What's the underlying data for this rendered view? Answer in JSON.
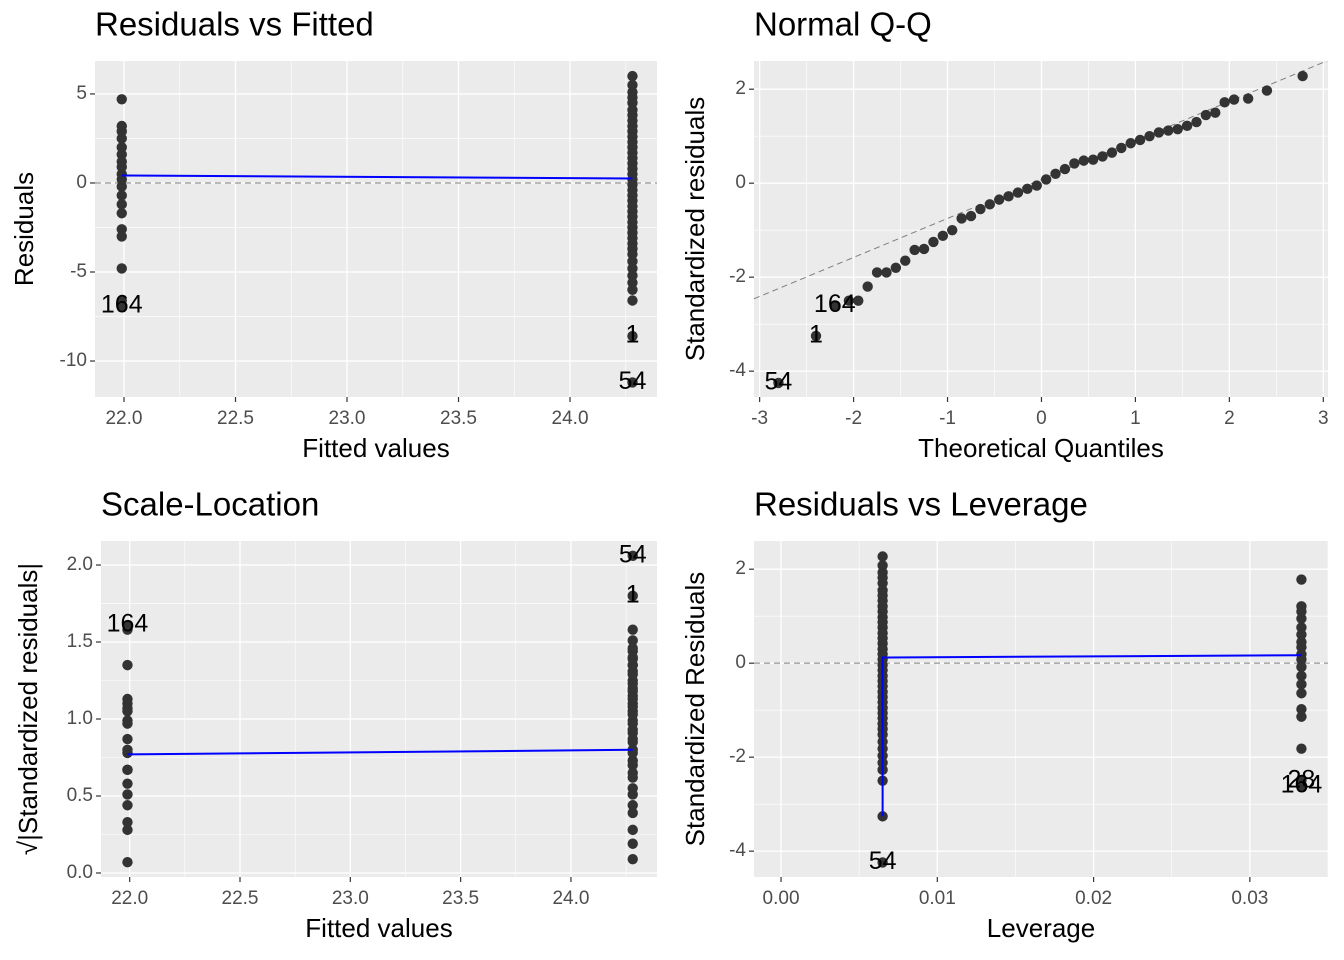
{
  "chart_data": [
    {
      "type": "scatter",
      "title": "Residuals vs Fitted",
      "x_label": "Fitted values",
      "y_label": "Residuals",
      "xlim": [
        21.87,
        24.39
      ],
      "ylim": [
        -12.02,
        6.85
      ],
      "xticks": [
        {
          "value": 22,
          "label": "22.0"
        },
        {
          "value": 22.5,
          "label": "22.5"
        },
        {
          "value": 23,
          "label": "23.0"
        },
        {
          "value": 23.5,
          "label": "23.5"
        },
        {
          "value": 24,
          "label": "24.0"
        }
      ],
      "yticks": [
        -10,
        -5,
        0,
        5
      ],
      "grid": true,
      "color": "#333333",
      "x": [
        21.99,
        21.99,
        21.99,
        21.99,
        21.99,
        21.99,
        21.99,
        21.99,
        21.99,
        21.99,
        21.99,
        21.99,
        21.99,
        21.99,
        21.99,
        21.99,
        21.99,
        21.99,
        21.99,
        24.28,
        24.28,
        24.28,
        24.28,
        24.28,
        24.28,
        24.28,
        24.28,
        24.28,
        24.28,
        24.28,
        24.28,
        24.28,
        24.28,
        24.28,
        24.28,
        24.28,
        24.28,
        24.28,
        24.28,
        24.28,
        24.28,
        24.28,
        24.28,
        24.28,
        24.28,
        24.28,
        24.28,
        24.28,
        24.28,
        24.28,
        24.28,
        24.28,
        24.28,
        24.28,
        24.28,
        24.28,
        24.28,
        24.28,
        24.28,
        24.28
      ],
      "values": [
        4.7,
        3.2,
        2.9,
        2.5,
        2.0,
        1.6,
        1.2,
        0.9,
        0.5,
        0.2,
        -0.2,
        -0.7,
        -1.2,
        -1.7,
        -2.6,
        -3.0,
        -4.8,
        -6.6,
        -6.9,
        6.0,
        5.5,
        5.1,
        4.8,
        4.5,
        4.1,
        3.8,
        3.5,
        3.2,
        2.9,
        2.6,
        2.3,
        2.0,
        1.7,
        1.4,
        1.1,
        0.8,
        0.5,
        0.2,
        -0.1,
        -0.4,
        -0.7,
        -1.0,
        -1.3,
        -1.6,
        -1.9,
        -2.2,
        -2.5,
        -2.8,
        -3.1,
        -3.4,
        -3.7,
        -4.0,
        -4.4,
        -4.8,
        -5.2,
        -5.6,
        -6.0,
        -6.6,
        -8.6,
        -11.2
      ],
      "smooth": {
        "x": [
          21.99,
          24.28
        ],
        "values": [
          0.42,
          0.25
        ],
        "color": "#0000ff"
      },
      "reference_line": {
        "y": 0
      },
      "point_labels": [
        {
          "text": "164",
          "x": 21.99,
          "y": -6.9
        },
        {
          "text": "1",
          "x": 24.28,
          "y": -8.6
        },
        {
          "text": "54",
          "x": 24.28,
          "y": -11.2
        }
      ]
    },
    {
      "type": "scatter",
      "title": "Normal Q-Q",
      "x_label": "Theoretical Quantiles",
      "y_label": "Standardized residuals",
      "xlim": [
        -3.06,
        3.05
      ],
      "ylim": [
        -4.55,
        2.6
      ],
      "xticks": [
        -3,
        -2,
        -1,
        0,
        1,
        2,
        3
      ],
      "yticks": [
        -4,
        -2,
        0,
        2
      ],
      "grid": true,
      "color": "#333333",
      "x": [
        -2.8,
        -2.4,
        -2.2,
        -2.05,
        -1.95,
        -1.85,
        -1.75,
        -1.65,
        -1.55,
        -1.45,
        -1.35,
        -1.25,
        -1.15,
        -1.05,
        -0.95,
        -0.85,
        -0.75,
        -0.65,
        -0.55,
        -0.45,
        -0.35,
        -0.25,
        -0.15,
        -0.05,
        0.05,
        0.15,
        0.25,
        0.35,
        0.45,
        0.55,
        0.65,
        0.75,
        0.85,
        0.95,
        1.05,
        1.15,
        1.25,
        1.35,
        1.45,
        1.55,
        1.65,
        1.75,
        1.85,
        1.95,
        2.05,
        2.2,
        2.4,
        2.78
      ],
      "values": [
        -4.25,
        -3.25,
        -2.6,
        -2.5,
        -2.5,
        -2.2,
        -1.9,
        -1.9,
        -1.8,
        -1.65,
        -1.42,
        -1.4,
        -1.25,
        -1.12,
        -1.0,
        -0.75,
        -0.7,
        -0.55,
        -0.45,
        -0.35,
        -0.28,
        -0.2,
        -0.12,
        -0.05,
        0.08,
        0.2,
        0.3,
        0.42,
        0.48,
        0.5,
        0.57,
        0.65,
        0.75,
        0.85,
        0.92,
        1.0,
        1.08,
        1.12,
        1.15,
        1.22,
        1.3,
        1.45,
        1.5,
        1.72,
        1.78,
        1.8,
        1.97,
        2.28
      ],
      "reference_line": {
        "slope": 0.83,
        "intercept": 0.08
      },
      "point_labels": [
        {
          "text": "164",
          "x": -2.2,
          "y": -2.6
        },
        {
          "text": "1",
          "x": -2.4,
          "y": -3.25
        },
        {
          "text": "54",
          "x": -2.8,
          "y": -4.25
        }
      ]
    },
    {
      "type": "scatter",
      "title": "Scale-Location",
      "x_label": "Fitted values",
      "y_label": "√|Standardized residuals|",
      "xlim": [
        21.87,
        24.39
      ],
      "ylim": [
        -0.026,
        2.156
      ],
      "xticks": [
        {
          "value": 22,
          "label": "22.0"
        },
        {
          "value": 22.5,
          "label": "22.5"
        },
        {
          "value": 23,
          "label": "23.0"
        },
        {
          "value": 23.5,
          "label": "23.5"
        },
        {
          "value": 24,
          "label": "24.0"
        }
      ],
      "yticks": [
        {
          "value": 0,
          "label": "0.0"
        },
        {
          "value": 0.5,
          "label": "0.5"
        },
        {
          "value": 1,
          "label": "1.0"
        },
        {
          "value": 1.5,
          "label": "1.5"
        },
        {
          "value": 2,
          "label": "2.0"
        }
      ],
      "grid": true,
      "color": "#333333",
      "x": [
        21.99,
        21.99,
        21.99,
        21.99,
        21.99,
        21.99,
        21.99,
        21.99,
        21.99,
        21.99,
        21.99,
        21.99,
        21.99,
        21.99,
        21.99,
        21.99,
        21.99,
        21.99,
        21.99,
        21.99,
        24.28,
        24.28,
        24.28,
        24.28,
        24.28,
        24.28,
        24.28,
        24.28,
        24.28,
        24.28,
        24.28,
        24.28,
        24.28,
        24.28,
        24.28,
        24.28,
        24.28,
        24.28,
        24.28,
        24.28,
        24.28,
        24.28,
        24.28,
        24.28,
        24.28,
        24.28,
        24.28,
        24.28,
        24.28,
        24.28,
        24.28,
        24.28,
        24.28,
        24.28,
        24.28,
        24.28,
        24.28,
        24.28,
        24.28,
        24.28,
        24.28
      ],
      "values": [
        1.35,
        1.1,
        1.05,
        0.97,
        0.87,
        0.78,
        0.67,
        0.58,
        0.44,
        0.28,
        0.33,
        0.51,
        0.67,
        0.8,
        0.99,
        1.07,
        1.13,
        1.58,
        1.61,
        0.07,
        1.58,
        1.44,
        1.39,
        1.35,
        1.31,
        1.25,
        1.2,
        1.15,
        1.1,
        1.05,
        0.99,
        0.93,
        0.87,
        0.8,
        0.73,
        0.65,
        0.55,
        0.44,
        0.28,
        0.09,
        0.19,
        0.39,
        0.51,
        0.62,
        0.7,
        0.78,
        0.85,
        0.91,
        0.97,
        1.03,
        1.08,
        1.13,
        1.18,
        1.23,
        1.29,
        1.4,
        1.46,
        1.51,
        1.35,
        1.8,
        2.06
      ],
      "smooth": {
        "x": [
          21.99,
          24.28
        ],
        "values": [
          0.77,
          0.8
        ],
        "color": "#0000ff"
      },
      "point_labels": [
        {
          "text": "164",
          "x": 21.99,
          "y": 1.61
        },
        {
          "text": "1",
          "x": 24.28,
          "y": 1.8
        },
        {
          "text": "54",
          "x": 24.28,
          "y": 2.06
        }
      ]
    },
    {
      "type": "scatter",
      "title": "Residuals vs Leverage",
      "x_label": "Leverage",
      "y_label": "Standardized Residuals",
      "xlim": [
        -0.00173,
        0.035
      ],
      "ylim": [
        -4.55,
        2.6
      ],
      "xticks": [
        {
          "value": 0,
          "label": "0.00"
        },
        {
          "value": 0.01,
          "label": "0.01"
        },
        {
          "value": 0.02,
          "label": "0.02"
        },
        {
          "value": 0.03,
          "label": "0.03"
        }
      ],
      "yticks": [
        -4,
        -2,
        0,
        2
      ],
      "grid": true,
      "color": "#333333",
      "x": [
        0.0065,
        0.0065,
        0.0065,
        0.0065,
        0.0065,
        0.0065,
        0.0065,
        0.0065,
        0.0065,
        0.0065,
        0.0065,
        0.0065,
        0.0065,
        0.0065,
        0.0065,
        0.0065,
        0.0065,
        0.0065,
        0.0065,
        0.0065,
        0.0065,
        0.0065,
        0.0065,
        0.0065,
        0.0065,
        0.0065,
        0.0065,
        0.0065,
        0.0065,
        0.0065,
        0.0065,
        0.0065,
        0.0065,
        0.0065,
        0.0065,
        0.0065,
        0.0065,
        0.0065,
        0.0065,
        0.0065,
        0.0065,
        0.0333,
        0.0333,
        0.0333,
        0.0333,
        0.0333,
        0.0333,
        0.0333,
        0.0333,
        0.0333,
        0.0333,
        0.0333,
        0.0333,
        0.0333,
        0.0333,
        0.0333,
        0.0333,
        0.0333,
        0.0333,
        0.0333
      ],
      "values": [
        2.27,
        2.08,
        1.93,
        1.82,
        1.7,
        1.55,
        1.44,
        1.33,
        1.21,
        1.1,
        0.98,
        0.87,
        0.76,
        0.64,
        0.53,
        0.42,
        0.3,
        0.19,
        0.08,
        -0.04,
        -0.15,
        -0.27,
        -0.38,
        -0.49,
        -0.61,
        -0.72,
        -0.83,
        -0.95,
        -1.06,
        -1.17,
        -1.29,
        -1.4,
        -1.52,
        -1.67,
        -1.82,
        -1.97,
        -2.12,
        -2.27,
        -2.5,
        -3.26,
        -4.24,
        1.78,
        1.21,
        1.1,
        0.95,
        0.76,
        0.61,
        0.45,
        0.34,
        0.19,
        0.08,
        -0.08,
        -0.27,
        -0.45,
        -0.64,
        -0.98,
        -1.14,
        -1.82,
        -2.5,
        -2.61
      ],
      "smooth": {
        "x": [
          0.0065,
          0.0065,
          0.0333
        ],
        "values": [
          -3.26,
          0.12,
          0.17
        ],
        "color": "#0000ff"
      },
      "reference_line": {
        "y": 0
      },
      "point_labels": [
        {
          "text": "54",
          "x": 0.0065,
          "y": -4.24
        },
        {
          "text": "28",
          "x": 0.0333,
          "y": -2.5
        },
        {
          "text": "164",
          "x": 0.0333,
          "y": -2.61
        }
      ]
    }
  ]
}
